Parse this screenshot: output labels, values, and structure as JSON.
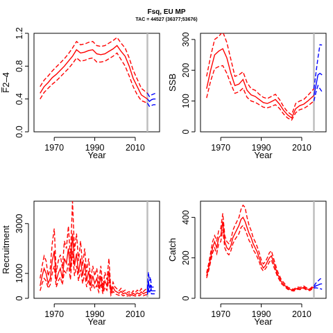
{
  "figure": {
    "title": "Fsq, EU MP",
    "subtitle": "TAC = 44527 (36377;53676)"
  },
  "chart_data": [
    {
      "type": "line",
      "ylabel": "F̅2–4",
      "xlabel": "Year",
      "xlim": [
        1960,
        2022
      ],
      "ylim": [
        0,
        1.2
      ],
      "xticks": [
        1970,
        1990,
        2010
      ],
      "yticks": [
        0.0,
        0.4,
        0.8,
        1.2
      ],
      "ytick_labels": [
        "0.0",
        "0.4",
        "0.8",
        "1.2"
      ],
      "vline_x": 2016,
      "historic": {
        "x": [
          1963,
          1965,
          1967,
          1969,
          1971,
          1973,
          1975,
          1977,
          1979,
          1981,
          1983,
          1985,
          1987,
          1989,
          1991,
          1993,
          1995,
          1997,
          1999,
          2001,
          2003,
          2005,
          2007,
          2009,
          2011,
          2013,
          2016
        ],
        "mid": [
          0.47,
          0.55,
          0.6,
          0.66,
          0.7,
          0.75,
          0.8,
          0.86,
          0.92,
          1.0,
          0.96,
          0.97,
          0.99,
          1.0,
          0.95,
          0.94,
          0.95,
          0.98,
          1.01,
          1.05,
          0.98,
          0.92,
          0.8,
          0.65,
          0.55,
          0.45,
          0.4
        ],
        "lower": [
          0.4,
          0.48,
          0.53,
          0.58,
          0.62,
          0.67,
          0.72,
          0.77,
          0.83,
          0.9,
          0.86,
          0.87,
          0.89,
          0.9,
          0.85,
          0.85,
          0.86,
          0.89,
          0.92,
          0.96,
          0.88,
          0.8,
          0.68,
          0.55,
          0.45,
          0.38,
          0.35
        ],
        "upper": [
          0.55,
          0.63,
          0.68,
          0.74,
          0.79,
          0.84,
          0.89,
          0.95,
          1.02,
          1.1,
          1.06,
          1.07,
          1.09,
          1.1,
          1.05,
          1.04,
          1.05,
          1.08,
          1.11,
          1.15,
          1.08,
          1.02,
          0.9,
          0.75,
          0.64,
          0.53,
          0.47
        ]
      },
      "projection": {
        "x": [
          2016,
          2017,
          2018,
          2019,
          2020
        ],
        "mid": [
          0.4,
          0.37,
          0.39,
          0.4,
          0.4
        ],
        "lower": [
          0.35,
          0.31,
          0.32,
          0.33,
          0.33
        ],
        "upper": [
          0.47,
          0.43,
          0.45,
          0.46,
          0.47
        ]
      }
    },
    {
      "type": "line",
      "ylabel": "SSB",
      "xlabel": "Year",
      "xlim": [
        1960,
        2022
      ],
      "ylim": [
        0,
        320
      ],
      "xticks": [
        1970,
        1990,
        2010
      ],
      "yticks": [
        0,
        100,
        200,
        300
      ],
      "ytick_labels": [
        "0",
        "100",
        "200",
        "300"
      ],
      "vline_x": 2016,
      "historic": {
        "x": [
          1963,
          1965,
          1967,
          1969,
          1971,
          1973,
          1975,
          1977,
          1979,
          1981,
          1983,
          1985,
          1987,
          1989,
          1991,
          1993,
          1995,
          1997,
          1999,
          2001,
          2003,
          2005,
          2007,
          2009,
          2011,
          2013,
          2016
        ],
        "mid": [
          140,
          200,
          250,
          262,
          270,
          240,
          190,
          150,
          155,
          170,
          135,
          120,
          115,
          105,
          95,
          92,
          98,
          105,
          90,
          70,
          55,
          45,
          75,
          85,
          90,
          100,
          118
        ],
        "lower": [
          110,
          165,
          205,
          212,
          215,
          190,
          155,
          125,
          130,
          142,
          112,
          100,
          96,
          88,
          80,
          78,
          82,
          88,
          76,
          58,
          45,
          38,
          62,
          72,
          76,
          84,
          100
        ],
        "upper": [
          180,
          245,
          300,
          310,
          325,
          290,
          235,
          180,
          185,
          195,
          160,
          140,
          135,
          122,
          112,
          108,
          115,
          122,
          105,
          82,
          65,
          55,
          92,
          100,
          105,
          118,
          140
        ]
      },
      "projection": {
        "x": [
          2016,
          2017,
          2018,
          2019,
          2020
        ],
        "mid": [
          118,
          150,
          185,
          190,
          185
        ],
        "lower": [
          100,
          128,
          150,
          140,
          130
        ],
        "upper": [
          140,
          190,
          240,
          283,
          282
        ]
      }
    },
    {
      "type": "line",
      "ylabel": "Recruitment",
      "xlabel": "Year",
      "xlim": [
        1960,
        2022
      ],
      "ylim": [
        0,
        3900
      ],
      "xticks": [
        1970,
        1990,
        2010
      ],
      "yticks": [
        0,
        1000,
        3000
      ],
      "ytick_labels": [
        "0",
        "1000",
        "3000"
      ],
      "vline_x": 2016,
      "historic": {
        "x": [
          1963,
          1964,
          1965,
          1966,
          1967,
          1968,
          1969,
          1970,
          1971,
          1972,
          1973,
          1974,
          1975,
          1976,
          1977,
          1978,
          1979,
          1980,
          1981,
          1982,
          1983,
          1984,
          1985,
          1986,
          1987,
          1988,
          1989,
          1990,
          1991,
          1992,
          1993,
          1994,
          1995,
          1996,
          1997,
          1998,
          1999,
          2000,
          2001,
          2002,
          2003,
          2004,
          2005,
          2006,
          2007,
          2008,
          2009,
          2010,
          2011,
          2012,
          2013,
          2014,
          2015,
          2016
        ],
        "mid": [
          500,
          900,
          1200,
          1000,
          600,
          800,
          1500,
          1900,
          700,
          1000,
          1200,
          800,
          1600,
          1400,
          2000,
          1100,
          2600,
          1300,
          1800,
          1000,
          1600,
          900,
          1400,
          700,
          1100,
          500,
          900,
          600,
          800,
          400,
          900,
          300,
          700,
          500,
          1100,
          200,
          450,
          300,
          250,
          200,
          280,
          180,
          220,
          150,
          180,
          120,
          200,
          150,
          220,
          170,
          260,
          180,
          230,
          250
        ],
        "lower": [
          300,
          600,
          800,
          700,
          400,
          550,
          1000,
          1300,
          450,
          700,
          850,
          550,
          1100,
          1000,
          1400,
          750,
          1900,
          900,
          1300,
          700,
          1150,
          600,
          1000,
          450,
          750,
          300,
          600,
          380,
          520,
          250,
          600,
          180,
          450,
          320,
          750,
          120,
          280,
          180,
          150,
          120,
          170,
          100,
          130,
          90,
          110,
          70,
          120,
          90,
          130,
          100,
          160,
          100,
          140,
          150
        ],
        "upper": [
          800,
          1300,
          1700,
          1500,
          900,
          1200,
          2200,
          2800,
          1050,
          1500,
          1750,
          1200,
          2300,
          2000,
          2900,
          1600,
          3900,
          1900,
          2600,
          1500,
          2300,
          1300,
          2000,
          1050,
          1600,
          750,
          1300,
          900,
          1200,
          600,
          1300,
          450,
          1050,
          750,
          1600,
          300,
          650,
          450,
          380,
          300,
          400,
          270,
          330,
          230,
          270,
          180,
          300,
          230,
          330,
          260,
          390,
          270,
          350,
          380
        ]
      },
      "projection": {
        "x": [
          2016,
          2016.5,
          2017,
          2017.5,
          2018,
          2019,
          2020
        ],
        "mid": [
          250,
          700,
          400,
          550,
          300,
          300,
          300
        ],
        "lower": [
          150,
          400,
          200,
          350,
          180,
          180,
          180
        ],
        "upper": [
          380,
          1050,
          700,
          850,
          450,
          450,
          450
        ]
      }
    },
    {
      "type": "line",
      "ylabel": "Catch",
      "xlabel": "Year",
      "xlim": [
        1960,
        2022
      ],
      "ylim": [
        0,
        480
      ],
      "xticks": [
        1970,
        1990,
        2010
      ],
      "yticks": [
        0,
        200,
        400
      ],
      "ytick_labels": [
        "0",
        "200",
        "400"
      ],
      "vline_x": 2016,
      "historic": {
        "x": [
          1963,
          1964,
          1965,
          1966,
          1967,
          1968,
          1969,
          1970,
          1971,
          1972,
          1973,
          1974,
          1975,
          1976,
          1977,
          1978,
          1979,
          1980,
          1981,
          1982,
          1983,
          1984,
          1985,
          1986,
          1987,
          1988,
          1989,
          1990,
          1991,
          1992,
          1993,
          1994,
          1995,
          1996,
          1997,
          1998,
          1999,
          2000,
          2001,
          2002,
          2003,
          2004,
          2005,
          2006,
          2007,
          2008,
          2009,
          2010,
          2011,
          2012,
          2013,
          2014,
          2015,
          2016
        ],
        "mid": [
          110,
          150,
          200,
          250,
          280,
          250,
          300,
          310,
          380,
          280,
          250,
          240,
          260,
          300,
          320,
          340,
          360,
          390,
          400,
          380,
          350,
          320,
          300,
          270,
          250,
          230,
          200,
          170,
          150,
          160,
          180,
          200,
          210,
          180,
          150,
          120,
          100,
          80,
          70,
          60,
          50,
          45,
          42,
          40,
          45,
          50,
          48,
          50,
          55,
          48,
          45,
          42,
          50,
          55
        ],
        "lower": [
          100,
          135,
          180,
          225,
          250,
          220,
          270,
          280,
          340,
          250,
          225,
          215,
          235,
          270,
          290,
          305,
          320,
          350,
          360,
          340,
          315,
          285,
          270,
          240,
          225,
          205,
          180,
          150,
          135,
          145,
          160,
          180,
          190,
          160,
          135,
          108,
          90,
          72,
          63,
          54,
          45,
          40,
          38,
          36,
          40,
          45,
          43,
          45,
          50,
          43,
          40,
          38,
          45,
          50
        ],
        "upper": [
          125,
          170,
          225,
          280,
          310,
          285,
          335,
          345,
          420,
          310,
          280,
          270,
          290,
          335,
          360,
          380,
          400,
          440,
          460,
          450,
          400,
          360,
          335,
          300,
          280,
          255,
          225,
          190,
          170,
          180,
          200,
          225,
          235,
          200,
          168,
          135,
          112,
          90,
          79,
          68,
          56,
          51,
          47,
          45,
          51,
          56,
          54,
          56,
          61,
          54,
          51,
          47,
          56,
          61
        ]
      },
      "projection": {
        "x": [
          2016,
          2017,
          2018,
          2019,
          2020
        ],
        "mid": [
          55,
          62,
          65,
          70,
          72
        ],
        "lower": [
          50,
          52,
          50,
          48,
          45
        ],
        "upper": [
          61,
          75,
          85,
          95,
          100
        ]
      }
    }
  ],
  "colors": {
    "historic": "#ff0000",
    "projection": "#0000ff",
    "vline": "#bebebe"
  }
}
